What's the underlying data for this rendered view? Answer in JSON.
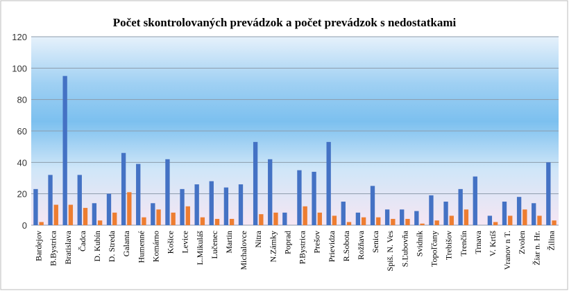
{
  "chart_data": {
    "type": "bar",
    "title": "Počet skontrolovaných prevádzok a počet prevádzok s nedostatkami",
    "categories": [
      "Bardejov",
      "B.Bystrica",
      "Bratislava",
      "Čadca",
      "D. Kubín",
      "D. Streda",
      "Galanta",
      "Humenné",
      "Komárno",
      "Košice",
      "Levice",
      "L.Mikuláš",
      "Lučenec",
      "Martin",
      "Michalovce",
      "Nitra",
      "N.Zámky",
      "Poprad",
      "P.Bystrica",
      "Prešov",
      "Prievidza",
      "R.Sobota",
      "Rožňava",
      "Senica",
      "Spiš. N. Ves",
      "S.Ľubovňa",
      "Svidník",
      "Topoľčany",
      "Trebišov",
      "Trenčín",
      "Trnava",
      "V. Krtíš",
      "Vranov n T.",
      "Zvolen",
      "Žiar n. Hr.",
      "Žilina"
    ],
    "series": [
      {
        "color": "#4472c4",
        "values": [
          23,
          32,
          95,
          32,
          14,
          20,
          46,
          39,
          14,
          42,
          23,
          26,
          28,
          24,
          26,
          53,
          42,
          8,
          35,
          34,
          53,
          15,
          8,
          25,
          10,
          10,
          9,
          19,
          15,
          23,
          31,
          6,
          15,
          18,
          14,
          40
        ]
      },
      {
        "color": "#ed7d31",
        "values": [
          2,
          13,
          13,
          11,
          3,
          8,
          21,
          5,
          10,
          8,
          12,
          5,
          4,
          4,
          0,
          7,
          8,
          0,
          12,
          8,
          6,
          2,
          5,
          5,
          4,
          4,
          1,
          3,
          6,
          10,
          0,
          2,
          6,
          10,
          6,
          3
        ]
      }
    ],
    "ylim": [
      0,
      120
    ],
    "yticks": [
      0,
      20,
      40,
      60,
      80,
      100,
      120
    ],
    "grid": true
  }
}
